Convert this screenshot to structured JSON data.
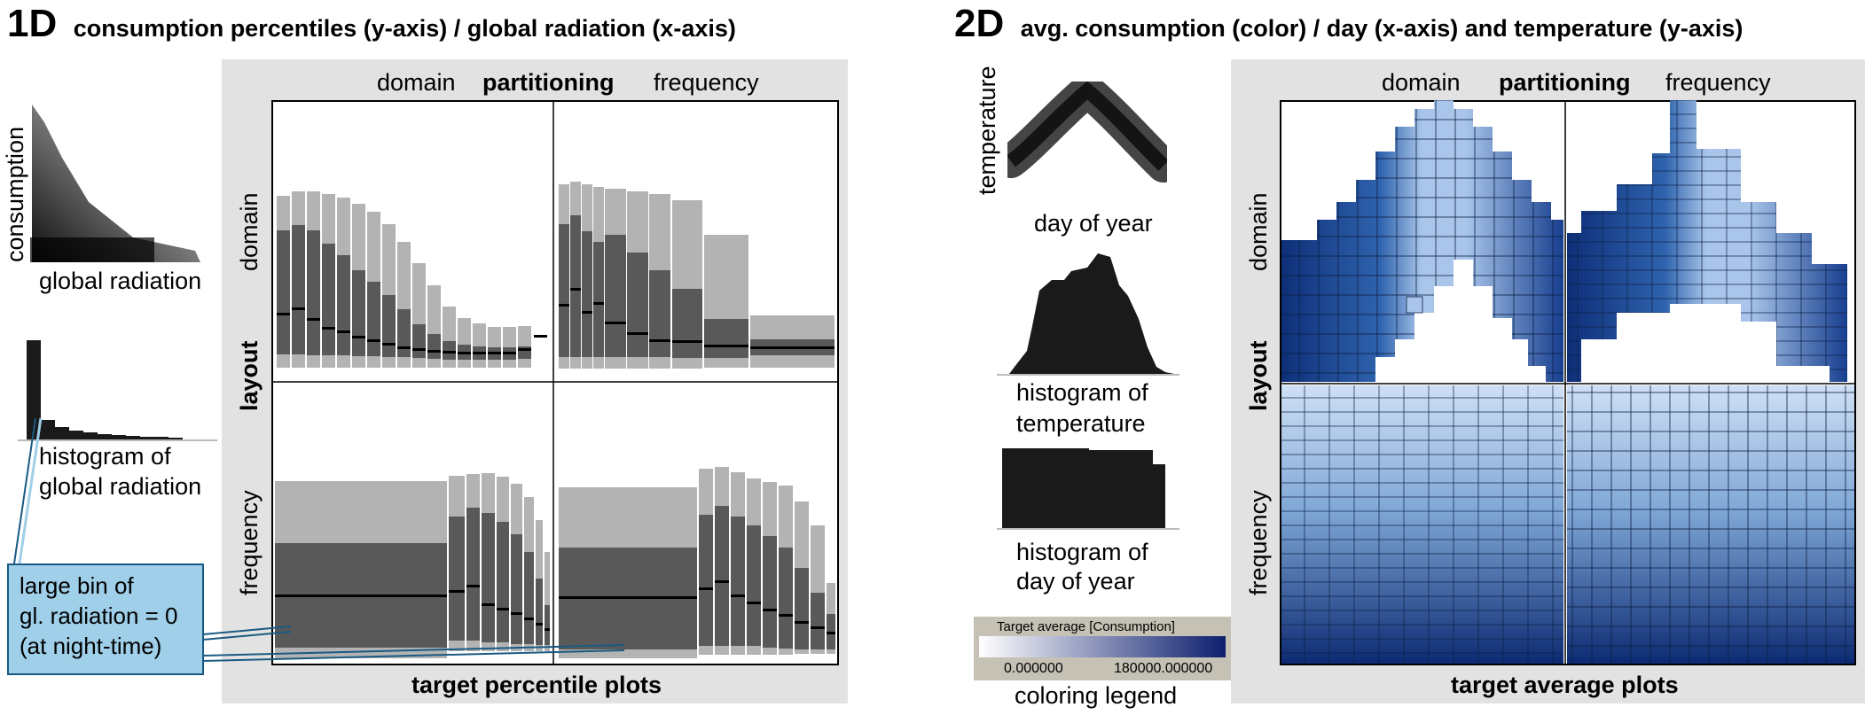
{
  "left_panel": {
    "id": "1D",
    "title": "consumption percentiles (y-axis) / global radiation (x-axis)",
    "scatter": {
      "ylabel": "consumption",
      "xlabel": "global radiation"
    },
    "histogram_label_line1": "histogram of",
    "histogram_label_line2": "global radiation",
    "callout": [
      "large bin of",
      "gl. radiation = 0",
      "(at night-time)"
    ],
    "header_left": "domain",
    "header_mid": "partitioning",
    "header_right": "frequency",
    "row_top": "domain",
    "row_mid": "layout",
    "row_bottom": "frequency",
    "footer": "target percentile plots"
  },
  "right_panel": {
    "id": "2D",
    "title": "avg. consumption (color) / day (x-axis) and temperature (y-axis)",
    "scatter": {
      "ylabel": "temperature",
      "xlabel": "day of year"
    },
    "hist1_line1": "histogram of",
    "hist1_line2": "temperature",
    "hist2_line1": "histogram of",
    "hist2_line2": "day of year",
    "legend": {
      "title": "Target average [Consumption]",
      "min": "0.000000",
      "max": "180000.000000",
      "caption": "coloring legend",
      "color_min": "#ffffff",
      "color_max": "#0d1e6e"
    },
    "header_left": "domain",
    "header_mid": "partitioning",
    "header_right": "frequency",
    "row_top": "domain",
    "row_mid": "layout",
    "row_bottom": "frequency",
    "footer": "target average plots"
  },
  "colors": {
    "light_gray": "#b3b3b3",
    "dark_gray": "#595959",
    "median": "#000000",
    "callout_fill": "#9fcfe9",
    "panel_bg": "#e2e2e2"
  }
}
